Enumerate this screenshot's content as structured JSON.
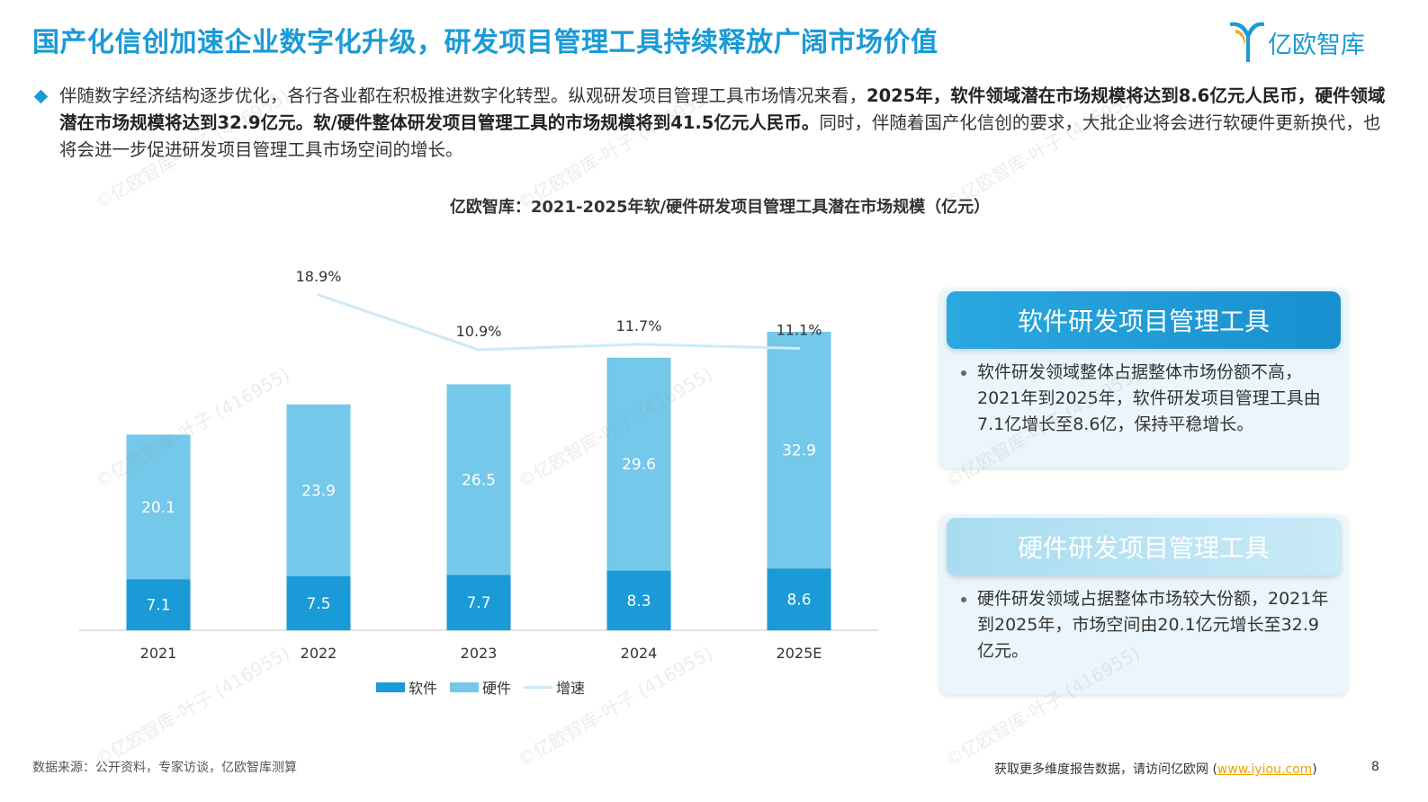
{
  "title": "国产化信创加速企业数字化升级，研发项目管理工具持续释放广阔市场价值",
  "logo": {
    "text": "亿欧智库",
    "icon": "yiou-logo-icon"
  },
  "intro": {
    "seg1": "伴随数字经济结构逐步优化，各行各业都在积极推进数字化转型。纵观研发项目管理工具市场情况来看，",
    "bold1": "2025年，软件领域潜在市场规模将达到8.6亿元人民币，硬件领域潜在市场规模将达到32.9亿元。软/硬件整体研发项目管理工具的市场规模将到41.5亿元人民币。",
    "seg2": "同时，伴随着国产化信创的要求，大批企业将会进行软硬件更新换代，也将会进一步促进研发项目管理工具市场空间的增长。"
  },
  "chart_data": {
    "type": "bar",
    "stacked": true,
    "title": "亿欧智库：2021-2025年软/硬件研发项目管理工具潜在市场规模（亿元）",
    "categories": [
      "2021",
      "2022",
      "2023",
      "2024",
      "2025E"
    ],
    "series": [
      {
        "name": "软件",
        "type": "bar",
        "values": [
          7.1,
          7.5,
          7.7,
          8.3,
          8.6
        ],
        "color": "#1a9ad6"
      },
      {
        "name": "硬件",
        "type": "bar",
        "values": [
          20.1,
          23.9,
          26.5,
          29.6,
          32.9
        ],
        "color": "#74c8ea"
      },
      {
        "name": "增速",
        "type": "line",
        "values": [
          null,
          18.9,
          10.9,
          11.7,
          11.1
        ],
        "labels": [
          "",
          "18.9%",
          "10.9%",
          "11.7%",
          "11.1%"
        ],
        "color": "#cdeaf7"
      }
    ],
    "ylim": [
      0,
      44
    ],
    "grid": false,
    "legend": "bottom"
  },
  "cards": [
    {
      "title": "软件研发项目管理工具",
      "text": "软件研发领域整体占据整体市场份额不高，2021年到2025年，软件研发项目管理工具由7.1亿增长至8.6亿，保持平稳增长。",
      "color_from": "#2aa8e0",
      "color_to": "#1890cf"
    },
    {
      "title": "硬件研发项目管理工具",
      "text": "硬件研发领域占据整体市场较大份额，2021年到2025年，市场空间由20.1亿元增长至32.9亿元。",
      "color_from": "#a9dcf1",
      "color_to": "#c9eaf7"
    }
  ],
  "watermark": "©亿欧智库-叶子 (416955)",
  "footer": {
    "source": "数据来源：公开资料，专家访谈，亿欧智库测算",
    "visit_prefix": "获取更多维度报告数据，请访问亿欧网 (",
    "visit_link": "www.iyiou.com",
    "visit_suffix": ")",
    "page": "8"
  }
}
